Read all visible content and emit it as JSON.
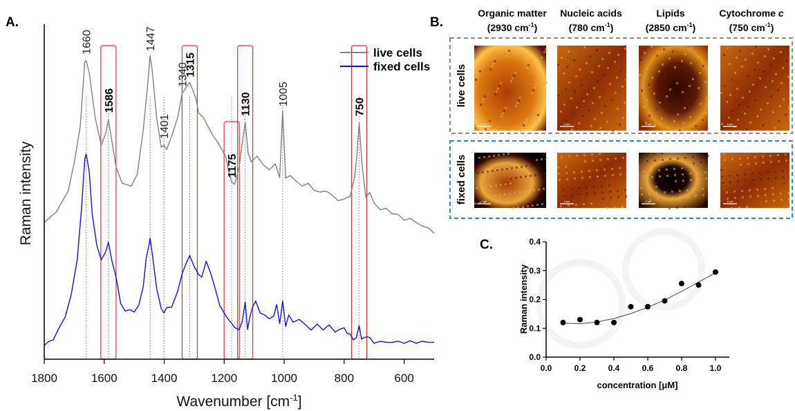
{
  "panels": {
    "a": "A.",
    "b": "B.",
    "c": "C."
  },
  "chart_data": [
    {
      "type": "line",
      "title": "",
      "xlabel": "Wavenumber [cm",
      "xlabel_sup": "-1",
      "xlabel_end": "]",
      "ylabel": "Raman intensity",
      "xlim": [
        1800,
        500
      ],
      "x_reversed": true,
      "x_ticks": [
        "1800",
        "1600",
        "1400",
        "1200",
        "1000",
        "800",
        "600"
      ],
      "series": [
        {
          "name": "live cells",
          "color": "#808080",
          "x": [
            1800,
            1760,
            1720,
            1700,
            1680,
            1665,
            1660,
            1650,
            1630,
            1610,
            1595,
            1586,
            1575,
            1560,
            1540,
            1510,
            1490,
            1470,
            1455,
            1447,
            1440,
            1425,
            1410,
            1401,
            1392,
            1375,
            1355,
            1340,
            1330,
            1315,
            1305,
            1295,
            1285,
            1270,
            1255,
            1240,
            1225,
            1210,
            1195,
            1185,
            1175,
            1165,
            1150,
            1140,
            1130,
            1120,
            1110,
            1090,
            1070,
            1050,
            1030,
            1015,
            1005,
            995,
            980,
            960,
            940,
            920,
            900,
            880,
            860,
            840,
            820,
            800,
            780,
            765,
            758,
            750,
            740,
            728,
            715,
            700,
            680,
            660,
            640,
            620,
            600,
            580,
            560,
            540,
            520,
            500
          ],
          "y": [
            0.06,
            0.09,
            0.16,
            0.24,
            0.36,
            0.55,
            0.56,
            0.52,
            0.38,
            0.3,
            0.33,
            0.38,
            0.31,
            0.23,
            0.18,
            0.17,
            0.21,
            0.34,
            0.49,
            0.57,
            0.53,
            0.38,
            0.29,
            0.3,
            0.28,
            0.33,
            0.38,
            0.46,
            0.47,
            0.49,
            0.47,
            0.44,
            0.4,
            0.38,
            0.36,
            0.33,
            0.31,
            0.29,
            0.26,
            0.22,
            0.18,
            0.18,
            0.23,
            0.3,
            0.37,
            0.27,
            0.25,
            0.26,
            0.24,
            0.22,
            0.24,
            0.2,
            0.4,
            0.2,
            0.2,
            0.19,
            0.17,
            0.18,
            0.16,
            0.15,
            0.16,
            0.14,
            0.13,
            0.13,
            0.14,
            0.2,
            0.26,
            0.37,
            0.23,
            0.14,
            0.15,
            0.12,
            0.1,
            0.1,
            0.09,
            0.08,
            0.07,
            0.07,
            0.06,
            0.05,
            0.04,
            0.03
          ]
        },
        {
          "name": "fixed cells",
          "color": "#1010e0",
          "x": [
            1800,
            1785,
            1770,
            1750,
            1730,
            1710,
            1690,
            1675,
            1665,
            1660,
            1650,
            1640,
            1625,
            1610,
            1596,
            1586,
            1575,
            1560,
            1545,
            1530,
            1515,
            1500,
            1485,
            1470,
            1460,
            1450,
            1447,
            1440,
            1425,
            1410,
            1401,
            1392,
            1375,
            1355,
            1340,
            1325,
            1315,
            1300,
            1285,
            1275,
            1260,
            1245,
            1230,
            1215,
            1200,
            1190,
            1175,
            1165,
            1150,
            1140,
            1130,
            1122,
            1115,
            1105,
            1095,
            1080,
            1065,
            1050,
            1035,
            1025,
            1015,
            1005,
            995,
            985,
            970,
            950,
            930,
            910,
            890,
            870,
            850,
            830,
            815,
            800,
            790,
            780,
            770,
            760,
            750,
            742,
            735,
            725,
            715,
            700,
            680,
            660,
            640,
            620,
            600,
            580,
            560,
            540,
            520,
            500
          ],
          "y": [
            0.0,
            0.01,
            0.02,
            0.05,
            0.09,
            0.15,
            0.26,
            0.42,
            0.56,
            0.58,
            0.52,
            0.4,
            0.3,
            0.26,
            0.28,
            0.31,
            0.26,
            0.2,
            0.13,
            0.1,
            0.11,
            0.1,
            0.12,
            0.18,
            0.26,
            0.31,
            0.32,
            0.28,
            0.17,
            0.11,
            0.1,
            0.11,
            0.12,
            0.16,
            0.22,
            0.25,
            0.27,
            0.24,
            0.21,
            0.21,
            0.25,
            0.22,
            0.17,
            0.12,
            0.1,
            0.08,
            0.07,
            0.05,
            0.05,
            0.07,
            0.13,
            0.05,
            0.08,
            0.12,
            0.13,
            0.1,
            0.09,
            0.08,
            0.09,
            0.12,
            0.07,
            0.13,
            0.06,
            0.09,
            0.07,
            0.08,
            0.06,
            0.05,
            0.06,
            0.05,
            0.06,
            0.04,
            0.05,
            0.05,
            0.04,
            0.03,
            0.02,
            0.02,
            0.06,
            0.02,
            0.02,
            0.03,
            0.02,
            0.01,
            0.01,
            0.01,
            0.01,
            0.01,
            0.01,
            0.01,
            0.01,
            0.01,
            0.01,
            0.01
          ]
        }
      ],
      "legend": "top-right",
      "peak_labels": [
        {
          "x": 1660,
          "text": "1660",
          "bold": false
        },
        {
          "x": 1586,
          "text": "1586",
          "bold": true
        },
        {
          "x": 1447,
          "text": "1447",
          "bold": false
        },
        {
          "x": 1401,
          "text": "1401",
          "bold": false
        },
        {
          "x": 1340,
          "text": "1340",
          "bold": false
        },
        {
          "x": 1315,
          "text": "1315",
          "bold": true
        },
        {
          "x": 1175,
          "text": "1175",
          "bold": true
        },
        {
          "x": 1130,
          "text": "1130",
          "bold": true
        },
        {
          "x": 1005,
          "text": "1005",
          "bold": false
        },
        {
          "x": 750,
          "text": "750",
          "bold": true
        }
      ],
      "highlight_boxes": [
        1586,
        1315,
        1175,
        1130,
        750
      ],
      "highlight_color": "#e03030"
    },
    {
      "type": "image-grid",
      "columns": [
        {
          "name": "Organic matter",
          "band": "(2930 cm",
          "sup": "-1",
          "close": ")"
        },
        {
          "name": "Nucleic acids",
          "band": "(780 cm",
          "sup": "-1",
          "close": ")"
        },
        {
          "name": "Lipids",
          "band": "(2850 cm",
          "sup": "-1",
          "close": ")"
        },
        {
          "name": "Cytochrome ",
          "italic": "c",
          "band": "(750 cm",
          "sup": "-1",
          "close": ")"
        }
      ],
      "rows": [
        {
          "name": "live cells",
          "frame_color": "#8a8a8a"
        },
        {
          "name": "fixed cells",
          "frame_color": "#2a86d0"
        }
      ],
      "scale_label": "4 μm"
    },
    {
      "type": "scatter",
      "title": "",
      "xlabel": "concentration [μM]",
      "ylabel": "Raman intensity",
      "xlim": [
        0.0,
        1.0
      ],
      "ylim": [
        0.0,
        0.4
      ],
      "x_ticks": [
        "0.0",
        "0.2",
        "0.4",
        "0.6",
        "0.8",
        "1.0"
      ],
      "y_ticks": [
        "0.0",
        "0.1",
        "0.2",
        "0.3",
        "0.4"
      ],
      "points": {
        "x": [
          0.1,
          0.2,
          0.3,
          0.4,
          0.5,
          0.6,
          0.7,
          0.8,
          0.9,
          1.0
        ],
        "y": [
          0.12,
          0.13,
          0.12,
          0.12,
          0.175,
          0.175,
          0.195,
          0.255,
          0.25,
          0.295
        ]
      },
      "fit": {
        "x": [
          0.1,
          0.2,
          0.3,
          0.4,
          0.5,
          0.6,
          0.7,
          0.8,
          0.9,
          1.0
        ],
        "y": [
          0.118,
          0.116,
          0.122,
          0.134,
          0.151,
          0.173,
          0.198,
          0.228,
          0.26,
          0.292
        ]
      }
    }
  ]
}
